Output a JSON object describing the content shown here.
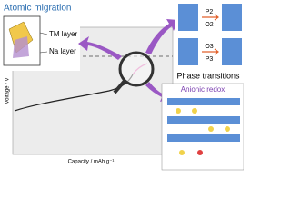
{
  "panels": {
    "migration": {
      "title": "Atomic migration",
      "labels": [
        "TM layer",
        "Na layer"
      ]
    },
    "phases": {
      "title": "Phase transitions",
      "labels": [
        "P2",
        "O2",
        "O3",
        "P3"
      ]
    },
    "redox": {
      "title": "Anionic redox"
    },
    "plot": {
      "y_label": "Voltage / V",
      "x_label": "Capacity / mAh g⁻¹"
    }
  }
}
